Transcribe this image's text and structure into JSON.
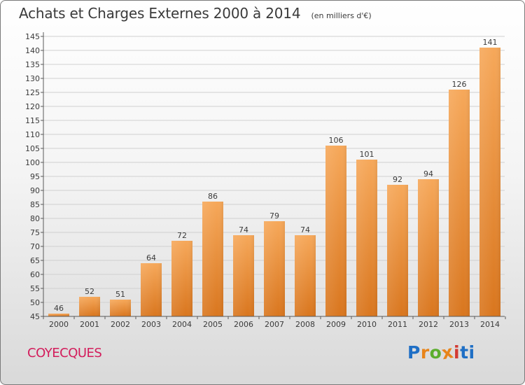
{
  "title": "Achats et Charges Externes 2000 à 2014",
  "subtitle": "(en milliers d'€)",
  "commune": "COYECQUES",
  "logo": {
    "letters": [
      "P",
      "r",
      "o",
      "x",
      "i",
      "t",
      "i"
    ],
    "colors": [
      "#1f6fc5",
      "#e8841a",
      "#5cae2e",
      "#e8841a",
      "#d23a32",
      "#1f6fc5",
      "#1f6fc5"
    ]
  },
  "colors": {
    "bar_light": "#f6a85a",
    "bar_dark": "#d9761e",
    "axis": "#5a5a5a",
    "grid": "#d0d0d0",
    "text": "#3a3a3a",
    "commune": "#d31c5b"
  },
  "chart_data": {
    "type": "bar",
    "categories": [
      "2000",
      "2001",
      "2002",
      "2003",
      "2004",
      "2005",
      "2006",
      "2007",
      "2008",
      "2009",
      "2010",
      "2011",
      "2012",
      "2013",
      "2014"
    ],
    "values": [
      46,
      52,
      51,
      64,
      72,
      86,
      74,
      79,
      74,
      106,
      101,
      92,
      94,
      126,
      141
    ],
    "data_labels": [
      "46",
      "52",
      "51",
      "64",
      "72",
      "86",
      "74",
      "79",
      "74",
      "106",
      "101",
      "92",
      "94",
      "126",
      "141"
    ],
    "yticks": [
      "45",
      "50",
      "55",
      "60",
      "65",
      "70",
      "75",
      "80",
      "85",
      "90",
      "95",
      "100",
      "105",
      "110",
      "115",
      "120",
      "125",
      "130",
      "135",
      "140",
      "145"
    ],
    "ylim": [
      45,
      145
    ],
    "ystep": 5,
    "grid": true,
    "legend": "none",
    "xlabel": "",
    "ylabel": ""
  }
}
